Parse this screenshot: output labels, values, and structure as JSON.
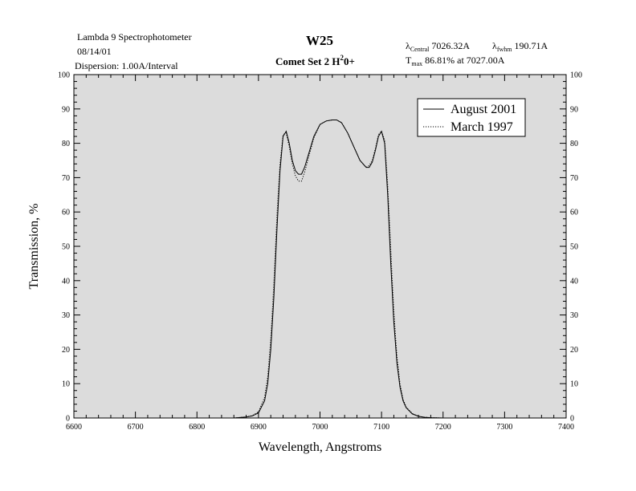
{
  "header": {
    "instrument": "Lambda 9 Spectrophotometer",
    "date": "08/14/01",
    "dispersion": "Dispersion:  1.00A/Interval",
    "lambda_symbol": "λ",
    "central_sub": "Central",
    "central_value": "7026.32A",
    "fwhm_sub": "fwhm",
    "fwhm_value": "190.71A",
    "tmax_symbol": "T",
    "tmax_sub": "max",
    "tmax_value": "86.81% at  7027.00A"
  },
  "chart_data": {
    "type": "line",
    "title": "W25",
    "subtitle_main": "Comet Set 2 H",
    "subtitle_sup": "2",
    "subtitle_end": "0+",
    "xlabel": "Wavelength, Angstroms",
    "ylabel": "Transmission, %",
    "xlim": [
      6600,
      7400
    ],
    "ylim": [
      0,
      100
    ],
    "xticks": [
      "6600",
      "6700",
      "6800",
      "6900",
      "7000",
      "7100",
      "7200",
      "7300",
      "7400"
    ],
    "yticks": [
      "0",
      "10",
      "20",
      "30",
      "40",
      "50",
      "60",
      "70",
      "80",
      "90",
      "100"
    ],
    "grid": false,
    "background": "#dcdcdc",
    "legend_position": "top-right",
    "series": [
      {
        "name": "August 2001",
        "style": "solid",
        "x": [
          6860,
          6880,
          6890,
          6900,
          6910,
          6915,
          6920,
          6925,
          6930,
          6935,
          6940,
          6945,
          6950,
          6955,
          6960,
          6965,
          6970,
          6975,
          6980,
          6990,
          7000,
          7010,
          7020,
          7027,
          7035,
          7045,
          7055,
          7065,
          7075,
          7080,
          7085,
          7090,
          7095,
          7100,
          7105,
          7110,
          7115,
          7120,
          7125,
          7130,
          7135,
          7140,
          7150,
          7160,
          7170,
          7180,
          7200
        ],
        "y": [
          0,
          0.3,
          0.6,
          1.5,
          5,
          10,
          20,
          35,
          55,
          72,
          82,
          83.5,
          80,
          75,
          72,
          71,
          71,
          73,
          76,
          82,
          85.5,
          86.5,
          86.8,
          86.8,
          86,
          83,
          79,
          75,
          73,
          73,
          74.5,
          78,
          82,
          83.5,
          80,
          65,
          45,
          28,
          16,
          9,
          5,
          3,
          1.2,
          0.5,
          0.2,
          0.1,
          0
        ]
      },
      {
        "name": "March 1997",
        "style": "dotted",
        "x": [
          6860,
          6880,
          6890,
          6900,
          6910,
          6915,
          6920,
          6925,
          6930,
          6935,
          6940,
          6945,
          6950,
          6955,
          6960,
          6965,
          6970,
          6975,
          6980,
          6990,
          7000,
          7010,
          7020,
          7027,
          7035,
          7045,
          7055,
          7065,
          7075,
          7080,
          7085,
          7090,
          7095,
          7100,
          7105,
          7110,
          7115,
          7120,
          7125,
          7130,
          7135,
          7140,
          7150,
          7160,
          7170,
          7180,
          7200
        ],
        "y": [
          0,
          0.3,
          0.7,
          1.8,
          6,
          12,
          23,
          39,
          59,
          74,
          82.5,
          83,
          79,
          74,
          70.5,
          69,
          69,
          71.5,
          75,
          81.5,
          85.5,
          86.5,
          86.8,
          86.8,
          86,
          83,
          79,
          75,
          73,
          73.5,
          75,
          78.5,
          82.5,
          83.5,
          81,
          68,
          49,
          31,
          18,
          10,
          5.5,
          3.2,
          1.3,
          0.5,
          0.2,
          0.1,
          0
        ]
      }
    ]
  }
}
